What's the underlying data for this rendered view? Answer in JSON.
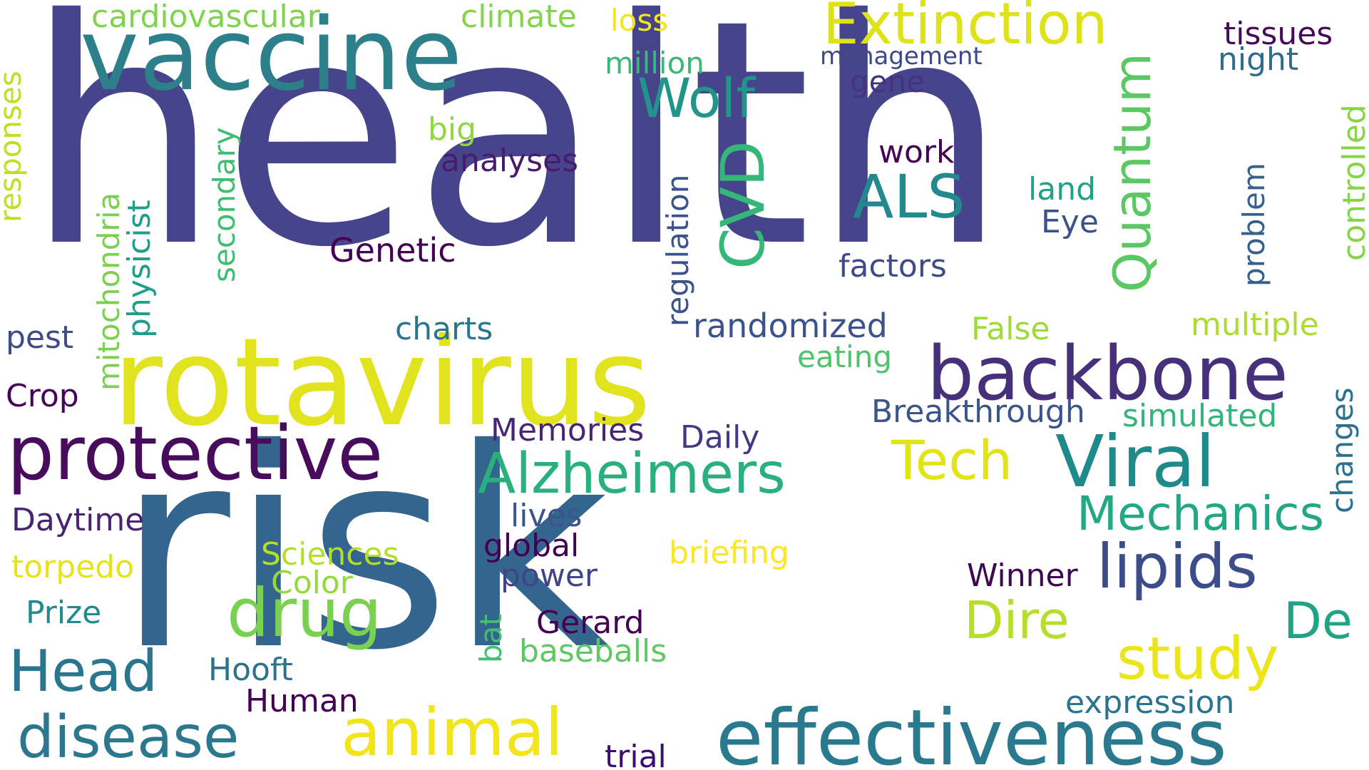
{
  "words": [
    {
      "text": "health",
      "color": "#46448b",
      "rotated": false
    },
    {
      "text": "risk",
      "color": "#33658e",
      "rotated": false
    },
    {
      "text": "rotavirus",
      "color": "#e0e31e",
      "rotated": false
    },
    {
      "text": "vaccine",
      "color": "#2d8089",
      "rotated": false
    },
    {
      "text": "effectiveness",
      "color": "#297a8e",
      "rotated": false
    },
    {
      "text": "backbone",
      "color": "#47307a",
      "rotated": false
    },
    {
      "text": "protective",
      "color": "#470c5c",
      "rotated": false
    },
    {
      "text": "Viral",
      "color": "#1e8a89",
      "rotated": false
    },
    {
      "text": "Extinction",
      "color": "#dde318",
      "rotated": false
    },
    {
      "text": "animal",
      "color": "#f2e51e",
      "rotated": false
    },
    {
      "text": "drug",
      "color": "#7ad151",
      "rotated": false
    },
    {
      "text": "disease",
      "color": "#2b788e",
      "rotated": false
    },
    {
      "text": "Alzheimers",
      "color": "#2ab07f",
      "rotated": false
    },
    {
      "text": "lipids",
      "color": "#3c4d8a",
      "rotated": false
    },
    {
      "text": "study",
      "color": "#ece51b",
      "rotated": false
    },
    {
      "text": "Head",
      "color": "#2a768e",
      "rotated": false
    },
    {
      "text": "Mechanics",
      "color": "#23a884",
      "rotated": false
    },
    {
      "text": "Tech",
      "color": "#e2e418",
      "rotated": false
    },
    {
      "text": "ALS",
      "color": "#23898e",
      "rotated": false
    },
    {
      "text": "Wolf",
      "color": "#22958b",
      "rotated": false
    },
    {
      "text": "CVD",
      "color": "#35b779",
      "rotated": true
    },
    {
      "text": "Quantum",
      "color": "#5cc863",
      "rotated": true
    },
    {
      "text": "Dire",
      "color": "#b7de2a",
      "rotated": false
    },
    {
      "text": "De",
      "color": "#20a386",
      "rotated": false
    },
    {
      "text": "cardiovascular",
      "color": "#7fd34e",
      "rotated": false
    },
    {
      "text": "climate",
      "color": "#84d44b",
      "rotated": false
    },
    {
      "text": "loss",
      "color": "#f4e61e",
      "rotated": false
    },
    {
      "text": "million",
      "color": "#38b977",
      "rotated": false
    },
    {
      "text": "management",
      "color": "#3e4989",
      "rotated": false
    },
    {
      "text": "gene",
      "color": "#46337f",
      "rotated": false
    },
    {
      "text": "tissues",
      "color": "#460a5d",
      "rotated": false
    },
    {
      "text": "night",
      "color": "#2f6c8e",
      "rotated": false
    },
    {
      "text": "big",
      "color": "#91d742",
      "rotated": false
    },
    {
      "text": "analyses",
      "color": "#481b6d",
      "rotated": false
    },
    {
      "text": "work",
      "color": "#450457",
      "rotated": false
    },
    {
      "text": "land",
      "color": "#1fa287",
      "rotated": false
    },
    {
      "text": "Eye",
      "color": "#3b518b",
      "rotated": false
    },
    {
      "text": "Genetic",
      "color": "#440154",
      "rotated": false
    },
    {
      "text": "factors",
      "color": "#3e4a89",
      "rotated": false
    },
    {
      "text": "charts",
      "color": "#2a768e",
      "rotated": false
    },
    {
      "text": "randomized",
      "color": "#3b528b",
      "rotated": false
    },
    {
      "text": "False",
      "color": "#a0da39",
      "rotated": false
    },
    {
      "text": "multiple",
      "color": "#addc30",
      "rotated": false
    },
    {
      "text": "eating",
      "color": "#4ec36b",
      "rotated": false
    },
    {
      "text": "pest",
      "color": "#3e4a89",
      "rotated": false
    },
    {
      "text": "Crop",
      "color": "#450457",
      "rotated": false
    },
    {
      "text": "Breakthrough",
      "color": "#3a548c",
      "rotated": false
    },
    {
      "text": "simulated",
      "color": "#31b57b",
      "rotated": false
    },
    {
      "text": "Memories",
      "color": "#482575",
      "rotated": false
    },
    {
      "text": "Daily",
      "color": "#443983",
      "rotated": false
    },
    {
      "text": "Daytime",
      "color": "#482374",
      "rotated": false
    },
    {
      "text": "lives",
      "color": "#39558c",
      "rotated": false
    },
    {
      "text": "global",
      "color": "#440154",
      "rotated": false
    },
    {
      "text": "briefing",
      "color": "#fde725",
      "rotated": false
    },
    {
      "text": "power",
      "color": "#414487",
      "rotated": false
    },
    {
      "text": "Sciences",
      "color": "#b5de2b",
      "rotated": false
    },
    {
      "text": "Color",
      "color": "#95d840",
      "rotated": false
    },
    {
      "text": "torpedo",
      "color": "#e5e419",
      "rotated": false
    },
    {
      "text": "Prize",
      "color": "#23898e",
      "rotated": false
    },
    {
      "text": "Winner",
      "color": "#3e0751",
      "rotated": false
    },
    {
      "text": "Gerard",
      "color": "#440154",
      "rotated": false
    },
    {
      "text": "baseballs",
      "color": "#5ec962",
      "rotated": false
    },
    {
      "text": "Hooft",
      "color": "#2c728e",
      "rotated": false
    },
    {
      "text": "Human",
      "color": "#440154",
      "rotated": false
    },
    {
      "text": "expression",
      "color": "#2b748e",
      "rotated": false
    },
    {
      "text": "trial",
      "color": "#3b0f70",
      "rotated": false
    },
    {
      "text": "responses",
      "color": "#bddf26",
      "rotated": true
    },
    {
      "text": "mitochondria",
      "color": "#7ad151",
      "rotated": true
    },
    {
      "text": "physicist",
      "color": "#1f9e89",
      "rotated": true
    },
    {
      "text": "secondary",
      "color": "#40bd72",
      "rotated": true
    },
    {
      "text": "regulation",
      "color": "#3b528b",
      "rotated": true
    },
    {
      "text": "problem",
      "color": "#355f8d",
      "rotated": true
    },
    {
      "text": "controlled",
      "color": "#86d549",
      "rotated": true
    },
    {
      "text": "changes",
      "color": "#2d708e",
      "rotated": true
    },
    {
      "text": "bat",
      "color": "#44bf70",
      "rotated": true
    }
  ]
}
